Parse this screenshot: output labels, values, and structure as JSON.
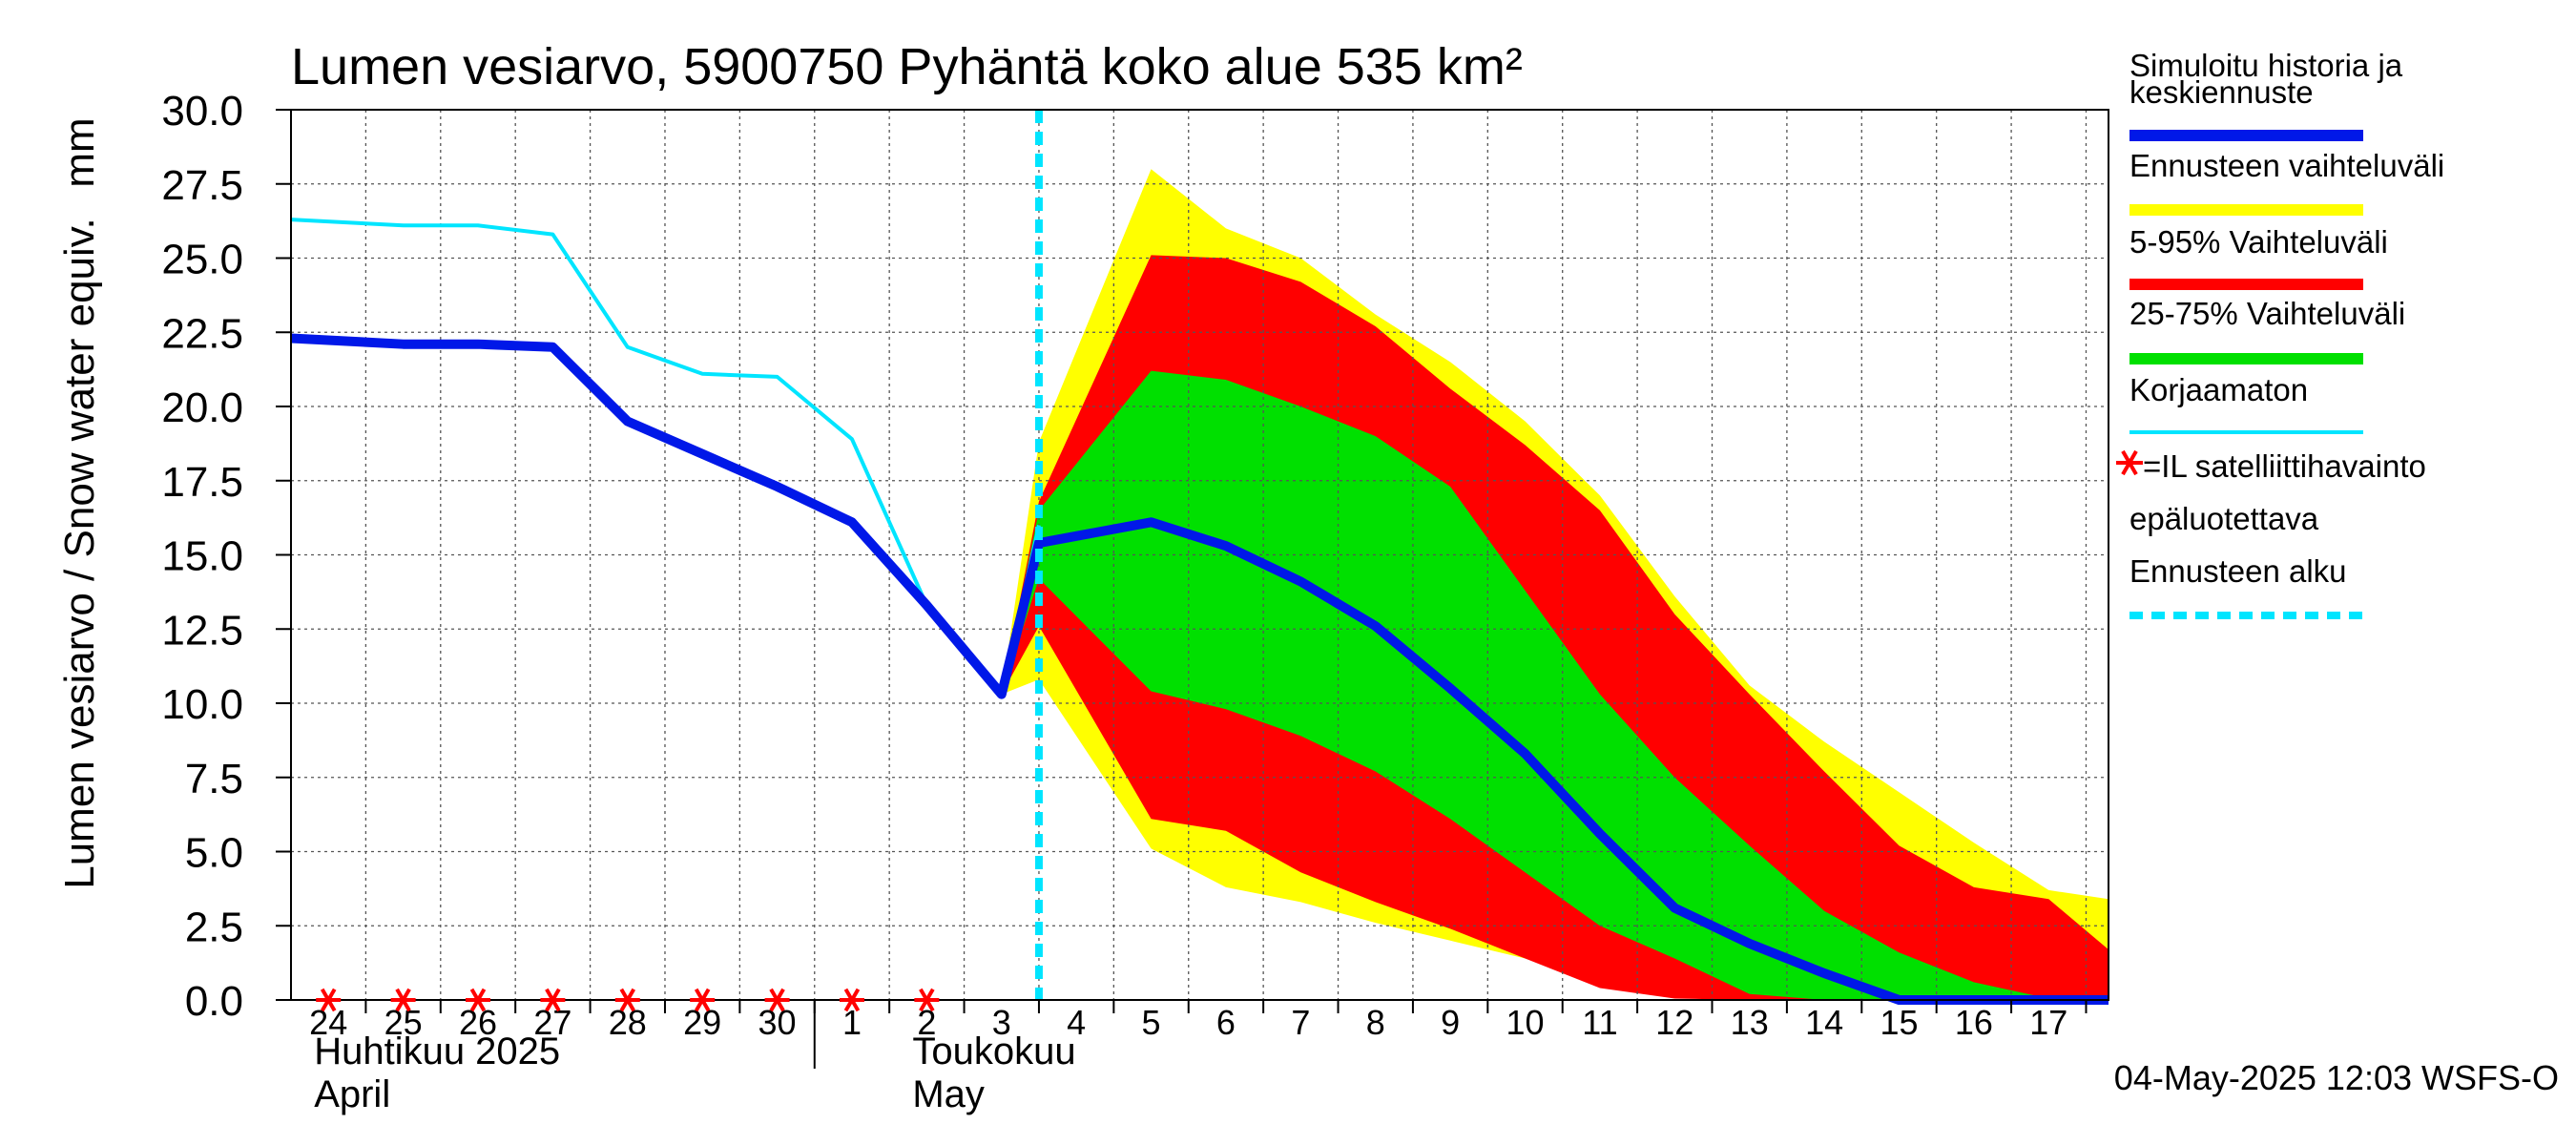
{
  "chart_data": {
    "type": "area",
    "title": "Lumen vesiarvo, 5900750 Pyhäntä koko alue 535 km²",
    "ylabel": "Lumen vesiarvo / Snow water equiv.",
    "yunit": "mm",
    "ylim": [
      0,
      30
    ],
    "yticks": [
      "0.0",
      "2.5",
      "5.0",
      "7.5",
      "10.0",
      "12.5",
      "15.0",
      "17.5",
      "20.0",
      "22.5",
      "25.0",
      "27.5",
      "30.0"
    ],
    "grid": true,
    "xlim": [
      -0.5,
      23.8
    ],
    "x_tick_labels": [
      {
        "x": 0,
        "label": "24"
      },
      {
        "x": 1,
        "label": "25"
      },
      {
        "x": 2,
        "label": "26"
      },
      {
        "x": 3,
        "label": "27"
      },
      {
        "x": 4,
        "label": "28"
      },
      {
        "x": 5,
        "label": "29"
      },
      {
        "x": 6,
        "label": "30"
      },
      {
        "x": 7,
        "label": "1"
      },
      {
        "x": 8,
        "label": "2"
      },
      {
        "x": 9,
        "label": "3"
      },
      {
        "x": 10,
        "label": "4"
      },
      {
        "x": 11,
        "label": "5"
      },
      {
        "x": 12,
        "label": "6"
      },
      {
        "x": 13,
        "label": "7"
      },
      {
        "x": 14,
        "label": "8"
      },
      {
        "x": 15,
        "label": "9"
      },
      {
        "x": 16,
        "label": "10"
      },
      {
        "x": 17,
        "label": "11"
      },
      {
        "x": 18,
        "label": "12"
      },
      {
        "x": 19,
        "label": "13"
      },
      {
        "x": 20,
        "label": "14"
      },
      {
        "x": 21,
        "label": "15"
      },
      {
        "x": 22,
        "label": "16"
      },
      {
        "x": 23,
        "label": "17"
      }
    ],
    "month_labels": [
      {
        "x": 0,
        "line1": "Huhtikuu  2025",
        "line2": "April"
      },
      {
        "x": 8,
        "line1": "Toukokuu",
        "line2": "May"
      }
    ],
    "month_divider_x": 6.5,
    "forecast_start_x": 9.5,
    "series": [
      {
        "name": "Korjaamaton",
        "kind": "line",
        "color": "#00e5ff",
        "x": [
          -0.5,
          1,
          2,
          3,
          4,
          5,
          6,
          7,
          8,
          9,
          9.5
        ],
        "y": [
          26.3,
          26.1,
          26.1,
          25.8,
          22.0,
          21.1,
          21.0,
          18.9,
          13.3,
          10.3,
          16.0
        ]
      },
      {
        "name": "Ennusteen vaihteluväli",
        "kind": "band",
        "color": "#ffff00",
        "x": [
          9,
          9.5,
          11,
          12,
          13,
          14,
          15,
          16,
          17,
          18,
          19,
          20,
          21,
          22,
          23,
          23.8
        ],
        "upper": [
          10.3,
          18.8,
          28.0,
          26.0,
          25.0,
          23.1,
          21.5,
          19.5,
          17.0,
          13.6,
          10.6,
          8.7,
          7.0,
          5.3,
          3.7,
          3.4
        ],
        "lower": [
          10.3,
          10.8,
          5.1,
          3.8,
          3.3,
          2.6,
          2.0,
          1.4,
          0.6,
          0.3,
          0.15,
          0.05,
          0.0,
          0.0,
          0.0,
          0.0
        ]
      },
      {
        "name": "5-95% Vaihteluväli",
        "kind": "band",
        "color": "#ff0000",
        "x": [
          9,
          9.5,
          11,
          12,
          13,
          14,
          15,
          16,
          17,
          18,
          19,
          20,
          21,
          22,
          23,
          23.8
        ],
        "upper": [
          10.3,
          16.8,
          25.1,
          25.0,
          24.2,
          22.7,
          20.6,
          18.7,
          16.5,
          13.0,
          10.3,
          7.7,
          5.2,
          3.8,
          3.4,
          1.7
        ],
        "lower": [
          10.3,
          12.6,
          6.1,
          5.7,
          4.3,
          3.3,
          2.4,
          1.4,
          0.4,
          0.05,
          0.0,
          0.0,
          0.0,
          0.0,
          0.0,
          0.0
        ]
      },
      {
        "name": "25-75% Vaihteluväli",
        "kind": "band",
        "color": "#00e000",
        "x": [
          9,
          9.5,
          11,
          12,
          13,
          14,
          15,
          16,
          17,
          18,
          19,
          20,
          21,
          22,
          23,
          23.8
        ],
        "upper": [
          10.3,
          16.5,
          21.2,
          20.9,
          20.0,
          19.0,
          17.3,
          13.8,
          10.3,
          7.5,
          5.2,
          3.0,
          1.6,
          0.6,
          0.05,
          0.0
        ],
        "lower": [
          10.3,
          14.2,
          10.4,
          9.8,
          8.9,
          7.7,
          6.1,
          4.3,
          2.5,
          1.4,
          0.2,
          0.0,
          0.0,
          0.0,
          0.0,
          0.0
        ]
      },
      {
        "name": "Simuloitu historia ja keskiennuste",
        "kind": "line",
        "color": "#0018e8",
        "x": [
          -0.5,
          1,
          2,
          3,
          4,
          5,
          6,
          7,
          8,
          9,
          9.5,
          11,
          12,
          13,
          14,
          15,
          16,
          17,
          18,
          19,
          20,
          21,
          22,
          23,
          23.8
        ],
        "y": [
          22.3,
          22.1,
          22.1,
          22.0,
          19.5,
          18.4,
          17.3,
          16.1,
          13.3,
          10.3,
          15.4,
          16.1,
          15.3,
          14.1,
          12.6,
          10.5,
          8.3,
          5.6,
          3.1,
          1.9,
          0.9,
          0.0,
          0.0,
          0.0,
          0.0
        ]
      }
    ],
    "markers": {
      "name": "=IL satelliittihavainto epäluotettava",
      "symbol": "*",
      "color": "#ff0000",
      "x": [
        0,
        1,
        2,
        3,
        4,
        5,
        6,
        7,
        8
      ],
      "y": [
        0,
        0,
        0,
        0,
        0,
        0,
        0,
        0,
        0
      ]
    },
    "legend": {
      "placement": "right",
      "items": [
        {
          "label": "Simuloitu historia ja keskiennuste",
          "lines": [
            "Simuloitu historia ja",
            "keskiennuste"
          ],
          "color": "#0018e8",
          "style": "thick"
        },
        {
          "label": "Ennusteen vaihteluväli",
          "lines": [
            "Ennusteen vaihteluväli"
          ],
          "color": "#ffff00",
          "style": "thick"
        },
        {
          "label": "5-95% Vaihteluväli",
          "lines": [
            "5-95% Vaihteluväli"
          ],
          "color": "#ff0000",
          "style": "thick"
        },
        {
          "label": "25-75% Vaihteluväli",
          "lines": [
            "25-75% Vaihteluväli"
          ],
          "color": "#00e000",
          "style": "thick"
        },
        {
          "label": "Korjaamaton",
          "lines": [
            "Korjaamaton"
          ],
          "color": "#00e5ff",
          "style": "thin"
        },
        {
          "label": "=IL satelliittihavainto epäluotettava",
          "lines": [
            "=IL satelliittihavainto",
            "epäluotettava"
          ],
          "color": "#ff0000",
          "style": "marker"
        },
        {
          "label": "Ennusteen alku",
          "lines": [
            "Ennusteen alku"
          ],
          "color": "#00e5ff",
          "style": "dashed"
        }
      ]
    },
    "footer": "04-May-2025 12:03 WSFS-O"
  }
}
